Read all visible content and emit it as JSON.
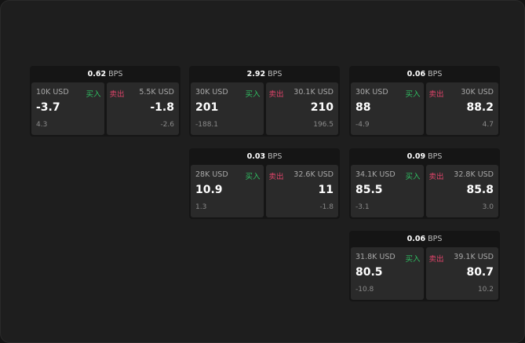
{
  "unit": "BPS",
  "buy_label": "买入",
  "sell_label": "卖出",
  "colors": {
    "buy": "#2fbf62",
    "sell": "#e0446a",
    "background": "#1e1e1e"
  },
  "cards": [
    {
      "spread": "0.62",
      "bid": {
        "qty": "10K USD",
        "price": "-3.7",
        "change": "4.3"
      },
      "ask": {
        "qty": "5.5K USD",
        "price": "-1.8",
        "change": "-2.6"
      }
    },
    {
      "spread": "2.92",
      "bid": {
        "qty": "30K USD",
        "price": "201",
        "change": "-188.1"
      },
      "ask": {
        "qty": "30.1K USD",
        "price": "210",
        "change": "196.5"
      }
    },
    {
      "spread": "0.06",
      "bid": {
        "qty": "30K USD",
        "price": "88",
        "change": "-4.9"
      },
      "ask": {
        "qty": "30K USD",
        "price": "88.2",
        "change": "4.7"
      }
    },
    {
      "spread": "0.03",
      "bid": {
        "qty": "28K USD",
        "price": "10.9",
        "change": "1.3"
      },
      "ask": {
        "qty": "32.6K USD",
        "price": "11",
        "change": "-1.8"
      }
    },
    {
      "spread": "0.09",
      "bid": {
        "qty": "34.1K USD",
        "price": "85.5",
        "change": "-3.1"
      },
      "ask": {
        "qty": "32.8K USD",
        "price": "85.8",
        "change": "3.0"
      }
    },
    {
      "spread": "0.06",
      "bid": {
        "qty": "31.8K USD",
        "price": "80.5",
        "change": "-10.8"
      },
      "ask": {
        "qty": "39.1K USD",
        "price": "80.7",
        "change": "10.2"
      }
    }
  ]
}
